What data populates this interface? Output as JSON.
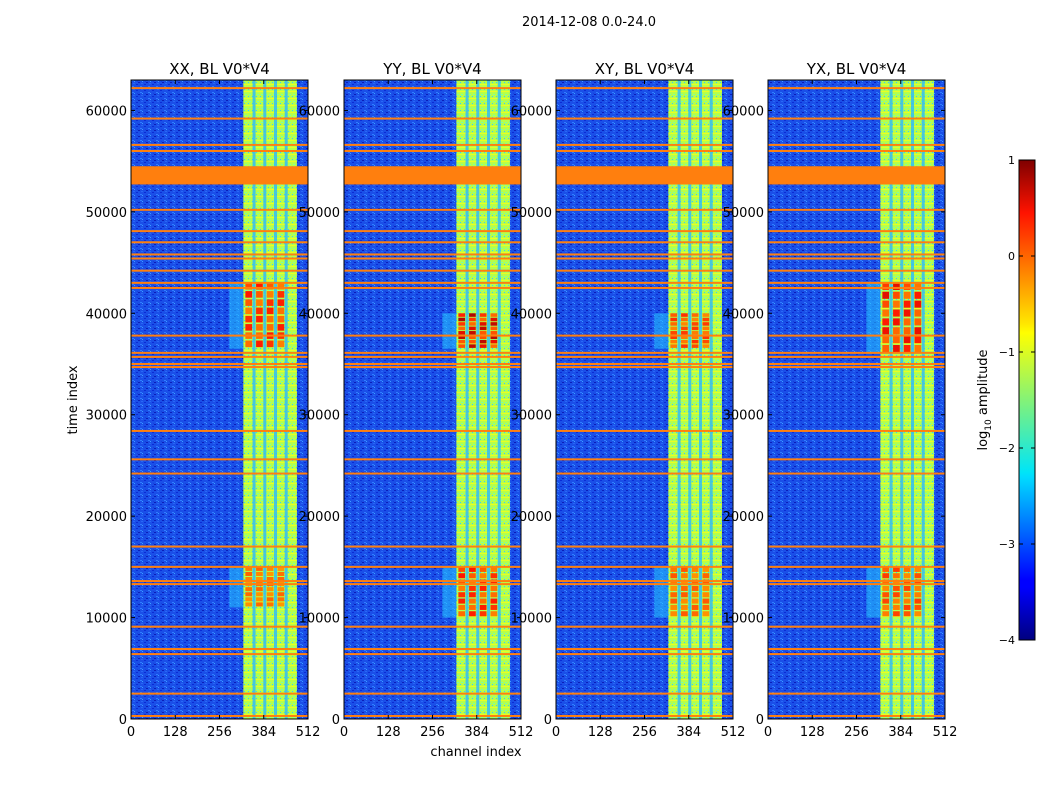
{
  "chart_data": {
    "type": "heatmap",
    "suptitle": "2014-12-08 0.0-24.0",
    "xlabel": "channel index",
    "ylabel": "time index",
    "x_ticks": [
      0,
      128,
      256,
      384,
      512
    ],
    "y_ticks": [
      0,
      10000,
      20000,
      30000,
      40000,
      50000,
      60000
    ],
    "xlim": [
      0,
      512
    ],
    "ylim": [
      0,
      63000
    ],
    "colormap": "jet",
    "panels": [
      {
        "title": "XX, BL V0*V4",
        "polarization": "XX",
        "bright_bands": [
          [
            11000,
            15000
          ],
          [
            36500,
            43000
          ]
        ],
        "band_peak": [
          0.3,
          0.6
        ]
      },
      {
        "title": "YY, BL V0*V4",
        "polarization": "YY",
        "bright_bands": [
          [
            10000,
            15000
          ],
          [
            36500,
            40000
          ]
        ],
        "band_peak": [
          0.6,
          0.85
        ]
      },
      {
        "title": "XY, BL V0*V4",
        "polarization": "XY",
        "bright_bands": [
          [
            10000,
            15000
          ],
          [
            36500,
            40000
          ]
        ],
        "band_peak": [
          0.35,
          0.5
        ]
      },
      {
        "title": "YX, BL V0*V4",
        "polarization": "YX",
        "bright_bands": [
          [
            10000,
            15000
          ],
          [
            36000,
            43000
          ]
        ],
        "band_peak": [
          0.45,
          0.7
        ]
      }
    ],
    "active_channel_range": [
      325,
      480
    ],
    "rfi_rows": [
      300,
      2500,
      6400,
      6900,
      9100,
      13300,
      13600,
      15000,
      17000,
      24200,
      25600,
      28400,
      34700,
      35000,
      35700,
      36100,
      37800,
      42500,
      43000,
      44200,
      45400,
      45800,
      47000,
      48100,
      50200,
      54400,
      56000,
      56600,
      59200,
      62200
    ],
    "flagged_block": [
      52700,
      54400
    ],
    "colorbar": {
      "label_prefix": "log",
      "label_sub": "10",
      "label_suffix": " amplitude",
      "range": [
        -4,
        1
      ],
      "ticks": [
        1,
        0,
        -1,
        -2,
        -3,
        -4
      ],
      "tick_labels": [
        "1",
        "0",
        "−1",
        "−2",
        "−3",
        "−4"
      ]
    }
  }
}
